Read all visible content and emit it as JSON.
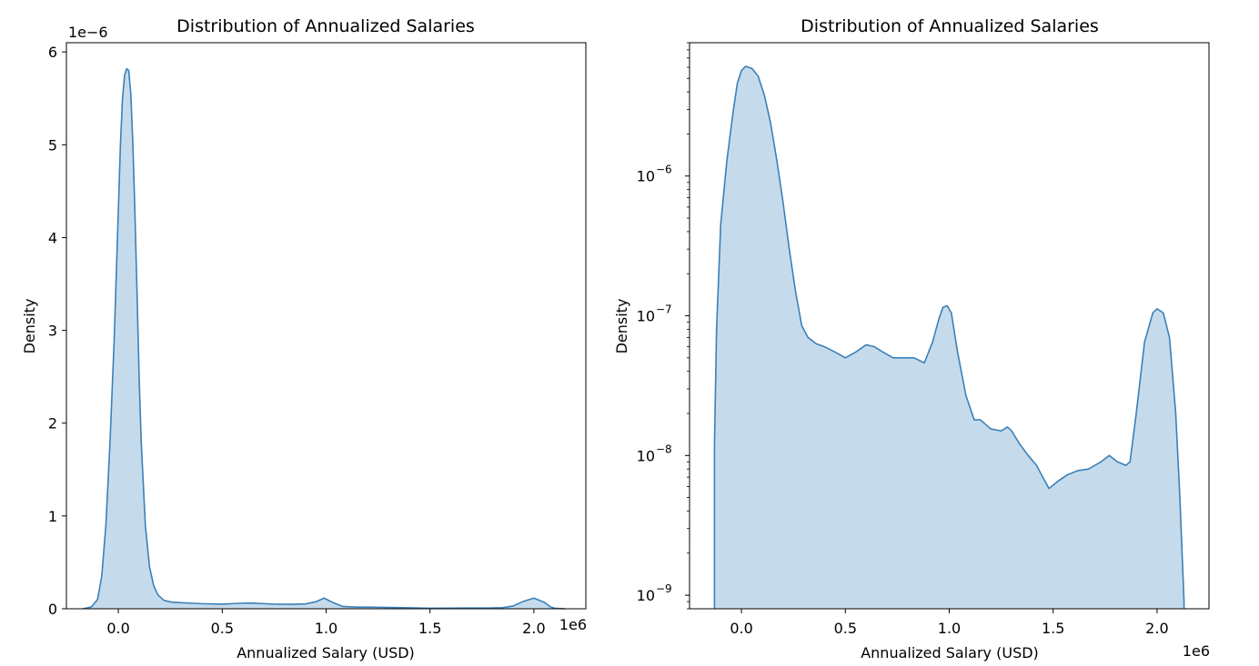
{
  "chart_data": [
    {
      "type": "area",
      "title": "Distribution of Annualized Salaries",
      "xlabel": "Annualized Salary (USD)",
      "ylabel": "Density",
      "x_offset_label": "1e6",
      "y_offset_label": "1e−6",
      "x_scale": "linear",
      "y_scale": "linear",
      "xlim": [
        -0.25,
        2.25
      ],
      "ylim": [
        0,
        6.1
      ],
      "x_ticks": [
        0.0,
        0.5,
        1.0,
        1.5,
        2.0
      ],
      "x_tick_labels": [
        "0.0",
        "0.5",
        "1.0",
        "1.5",
        "2.0"
      ],
      "y_ticks": [
        0,
        1,
        2,
        3,
        4,
        5,
        6
      ],
      "y_tick_labels": [
        "0",
        "1",
        "2",
        "3",
        "4",
        "5",
        "6"
      ],
      "grid": false,
      "color": "#3b80b8",
      "fill_color": "#c5dbec",
      "series": [
        {
          "x": [
            -0.17,
            -0.15,
            -0.13,
            -0.1,
            -0.08,
            -0.06,
            -0.04,
            -0.02,
            -0.01,
            0.0,
            0.01,
            0.02,
            0.03,
            0.04,
            0.05,
            0.06,
            0.07,
            0.08,
            0.09,
            0.1,
            0.11,
            0.13,
            0.15,
            0.17,
            0.19,
            0.22,
            0.26,
            0.3,
            0.35,
            0.4,
            0.5,
            0.55,
            0.6,
            0.64,
            0.7,
            0.75,
            0.8,
            0.85,
            0.9,
            0.95,
            0.99,
            1.03,
            1.08,
            1.15,
            1.2,
            1.3,
            1.4,
            1.5,
            1.6,
            1.7,
            1.8,
            1.85,
            1.9,
            1.95,
            2.0,
            2.05,
            2.08,
            2.1,
            2.15
          ],
          "y": [
            0.0,
            0.01,
            0.02,
            0.1,
            0.35,
            0.9,
            1.8,
            2.9,
            3.6,
            4.3,
            5.0,
            5.5,
            5.75,
            5.82,
            5.8,
            5.55,
            5.0,
            4.25,
            3.4,
            2.5,
            1.8,
            0.9,
            0.45,
            0.25,
            0.15,
            0.09,
            0.07,
            0.065,
            0.06,
            0.055,
            0.05,
            0.055,
            0.06,
            0.062,
            0.055,
            0.05,
            0.048,
            0.048,
            0.052,
            0.075,
            0.115,
            0.07,
            0.025,
            0.018,
            0.018,
            0.014,
            0.01,
            0.006,
            0.007,
            0.008,
            0.009,
            0.012,
            0.03,
            0.08,
            0.115,
            0.07,
            0.02,
            0.006,
            0.0
          ]
        }
      ]
    },
    {
      "type": "area",
      "title": "Distribution of Annualized Salaries",
      "xlabel": "Annualized Salary (USD)",
      "ylabel": "Density",
      "x_offset_label": "1e6",
      "x_scale": "linear",
      "y_scale": "log",
      "xlim": [
        -0.25,
        2.25
      ],
      "ylim": [
        8e-10,
        9e-06
      ],
      "x_ticks": [
        0.0,
        0.5,
        1.0,
        1.5,
        2.0
      ],
      "x_tick_labels": [
        "0.0",
        "0.5",
        "1.0",
        "1.5",
        "2.0"
      ],
      "y_ticks": [
        -9,
        -8,
        -7,
        -6
      ],
      "y_tick_labels": [
        {
          "base": "10",
          "exp": "−9"
        },
        {
          "base": "10",
          "exp": "−8"
        },
        {
          "base": "10",
          "exp": "−7"
        },
        {
          "base": "10",
          "exp": "−6"
        }
      ],
      "grid": false,
      "color": "#3b80b8",
      "fill_color": "#c5dbec",
      "series": [
        {
          "x": [
            -0.13,
            -0.12,
            -0.1,
            -0.07,
            -0.04,
            -0.02,
            0.0,
            0.02,
            0.05,
            0.08,
            0.11,
            0.14,
            0.17,
            0.2,
            0.23,
            0.26,
            0.29,
            0.32,
            0.36,
            0.4,
            0.45,
            0.5,
            0.55,
            0.6,
            0.64,
            0.68,
            0.73,
            0.78,
            0.83,
            0.88,
            0.92,
            0.95,
            0.97,
            0.99,
            1.01,
            1.04,
            1.08,
            1.12,
            1.15,
            1.2,
            1.25,
            1.28,
            1.3,
            1.34,
            1.38,
            1.42,
            1.45,
            1.48,
            1.52,
            1.57,
            1.62,
            1.67,
            1.73,
            1.77,
            1.81,
            1.85,
            1.87,
            1.9,
            1.94,
            1.98,
            2.0,
            2.03,
            2.06,
            2.09,
            2.11,
            2.13
          ],
          "y": [
            1.2e-08,
            8e-08,
            4.5e-07,
            1.3e-06,
            2.9e-06,
            4.6e-06,
            5.7e-06,
            6.1e-06,
            5.9e-06,
            5.2e-06,
            3.8e-06,
            2.4e-06,
            1.3e-06,
            6.5e-07,
            3e-07,
            1.5e-07,
            8.5e-08,
            7e-08,
            6.3e-08,
            6e-08,
            5.5e-08,
            5e-08,
            5.5e-08,
            6.2e-08,
            6e-08,
            5.5e-08,
            5e-08,
            5e-08,
            5e-08,
            4.6e-08,
            6.5e-08,
            9.5e-08,
            1.15e-07,
            1.18e-07,
            1.05e-07,
            5.5e-08,
            2.7e-08,
            1.8e-08,
            1.8e-08,
            1.55e-08,
            1.5e-08,
            1.6e-08,
            1.5e-08,
            1.2e-08,
            1e-08,
            8.5e-09,
            7e-09,
            5.8e-09,
            6.5e-09,
            7.3e-09,
            7.8e-09,
            8e-09,
            9e-09,
            1e-08,
            9e-09,
            8.5e-09,
            9e-09,
            2e-08,
            6.5e-08,
            1.05e-07,
            1.12e-07,
            1.05e-07,
            7e-08,
            2e-08,
            5e-09,
            9e-10
          ]
        }
      ]
    }
  ]
}
